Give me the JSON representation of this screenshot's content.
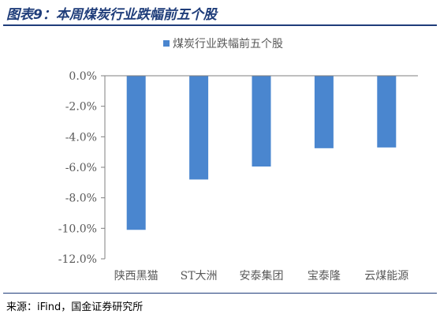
{
  "figure": {
    "title": "图表9：本周煤炭行业跌幅前五个股",
    "source": "来源：iFind，国金证券研究所"
  },
  "colors": {
    "bar": "#4a86cf",
    "axis": "#7f7f7f",
    "title": "#1f3d7a",
    "text": "#595959"
  },
  "chart_data": {
    "type": "bar",
    "categories": [
      "陕西黑猫",
      "ST大洲",
      "安泰集团",
      "宝泰隆",
      "云煤能源"
    ],
    "series": [
      {
        "name": "煤炭行业跌幅前五个股",
        "values": [
          -10.1,
          -6.8,
          -5.95,
          -4.75,
          -4.7
        ]
      }
    ],
    "yticks": [
      "0.0%",
      "-2.0%",
      "-4.0%",
      "-6.0%",
      "-8.0%",
      "-10.0%",
      "-12.0%"
    ],
    "ylim": [
      -12,
      0
    ],
    "grid": false,
    "legend_position": "top"
  }
}
